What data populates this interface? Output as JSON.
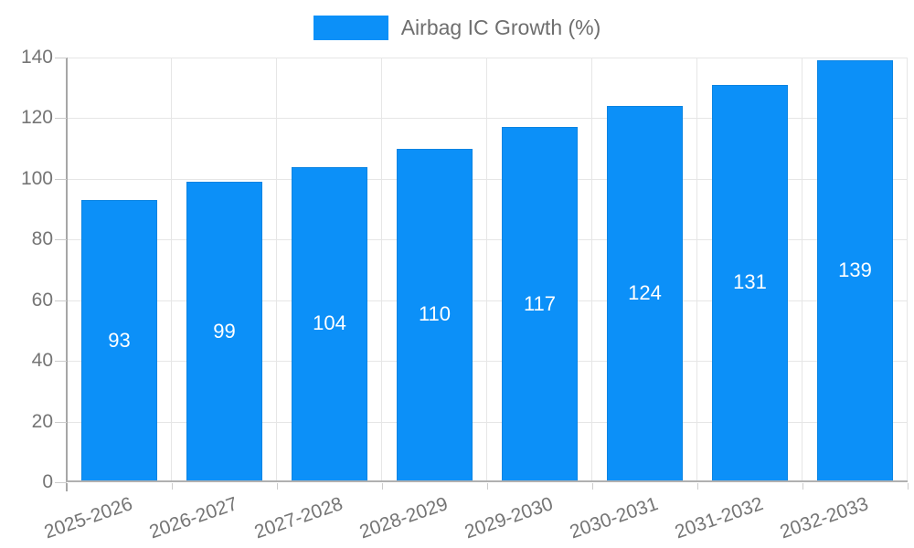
{
  "chart_data": {
    "type": "bar",
    "title": "",
    "legend": {
      "label": "Airbag IC Growth (%)",
      "position": "top"
    },
    "categories": [
      "2025-2026",
      "2026-2027",
      "2027-2028",
      "2028-2029",
      "2029-2030",
      "2030-2031",
      "2031-2032",
      "2032-2033"
    ],
    "series": [
      {
        "name": "Airbag IC Growth (%)",
        "values": [
          93,
          99,
          104,
          110,
          117,
          124,
          131,
          139
        ]
      }
    ],
    "value_labels_shown": true,
    "xlabel": "",
    "ylabel": "",
    "ylim": [
      0,
      140
    ],
    "y_ticks": [
      0,
      20,
      40,
      60,
      80,
      100,
      120,
      140
    ],
    "grid": true,
    "colors": {
      "bar": "#0c90f8",
      "bar_border": "#0b84e2",
      "bar_label": "#ffffff",
      "axis_text": "#757575",
      "legend_text": "#6e6e6e",
      "grid_line": "#e6e6e6",
      "axis_line": "#a6a6a6",
      "tick_line": "#cccccc",
      "background": "#ffffff"
    }
  }
}
